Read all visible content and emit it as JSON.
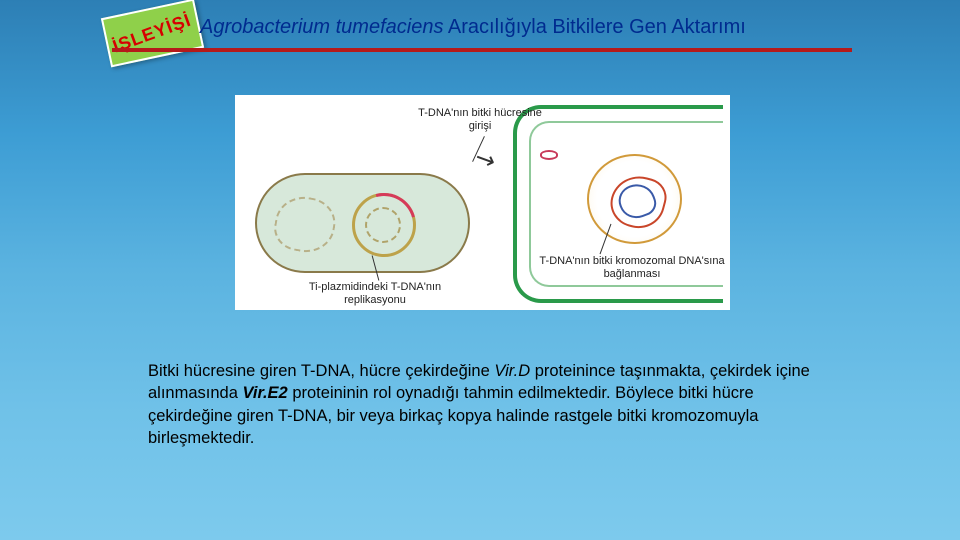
{
  "badge": {
    "text": "İŞLEYİŞİ"
  },
  "title": {
    "italic_part": "Agrobacterium tumefaciens",
    "rest": " Aracılığıyla Bitkilere Gen Aktarımı"
  },
  "diagram": {
    "label_tdna_entry": "T-DNA'nın bitki hücresine girişi",
    "label_replication": "Ti-plazmidindeki T-DNA'nın replikasyonu",
    "label_binding": "T-DNA'nın bitki kromozomal DNA'sına bağlanması",
    "colors": {
      "bacterium_fill": "#d7e8da",
      "bacterium_border": "#8a7a4a",
      "plasmid_ring": "#bda24a",
      "tdna_arc": "#d63a5a",
      "plant_border": "#2a9a4a",
      "nucleus_border": "#d19a3a"
    }
  },
  "paragraph": {
    "s1a": "Bitki hücresine giren T-DNA, hücre çekirdeğine ",
    "s1_em": "Vir.D",
    "s1b": " proteinince taşınmakta, çekirdek içine alınmasında ",
    "s1_em2": "Vir.E2",
    "s1c": " proteininin rol oynadığı tahmin  edilmektedir. Böylece bitki hücre  çekirdeğine  giren T-DNA, bir veya birkaç kopya halinde rastgele bitki kromozomuyla  birleşmektedir."
  },
  "style": {
    "title_color": "#002b8f",
    "underline_color": "#b51a1a",
    "badge_bg": "#8fd04a",
    "badge_text_color": "#d60000",
    "body_font": "Comic Sans MS"
  }
}
